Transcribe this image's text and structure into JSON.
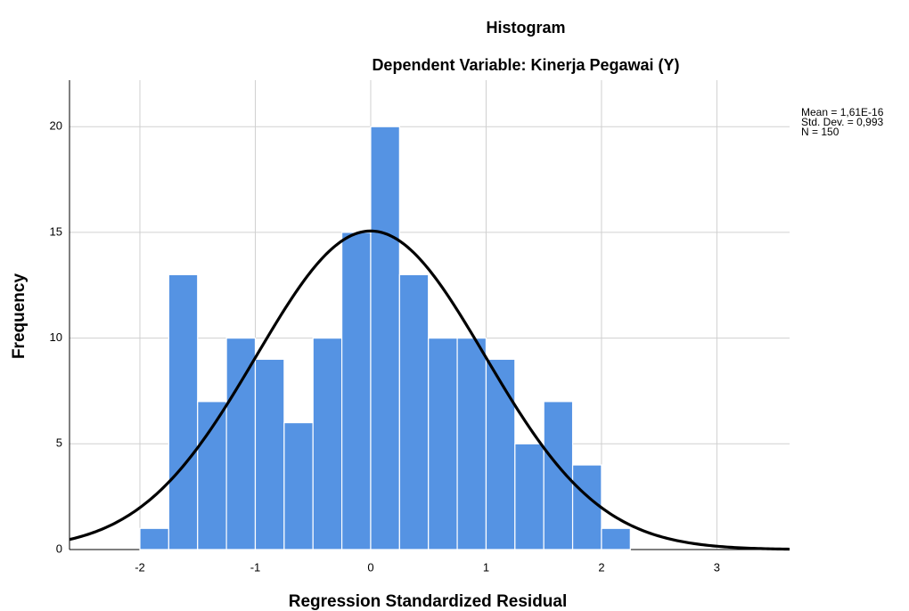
{
  "chart_data": {
    "type": "histogram",
    "title": "Histogram",
    "subtitle": "Dependent Variable: Kinerja Pegawai (Y)",
    "x_label": "Regression Standardized Residual",
    "y_label": "Frequency",
    "bins": [
      -2,
      -1.75,
      -1.5,
      -1.25,
      -1,
      -0.75,
      -0.5,
      -0.25,
      0,
      0.25,
      0.5,
      0.75,
      1,
      1.25,
      1.5,
      1.75,
      2,
      2.25
    ],
    "values": [
      1,
      13,
      7,
      10,
      9,
      6,
      10,
      15,
      20,
      13,
      10,
      10,
      9,
      5,
      7,
      4,
      1
    ],
    "color": "#5593e3",
    "xlim": [
      -2.61,
      3.63
    ],
    "ylim": [
      0,
      22.2
    ],
    "xticks": [
      -2,
      -1,
      0,
      1,
      2,
      3
    ],
    "yticks": [
      0,
      5,
      10,
      15,
      20
    ],
    "grid": true,
    "normal_curve": {
      "mean": 1.61e-16,
      "sd": 0.993,
      "n": 150,
      "color": "#000000"
    },
    "stats_labels": [
      "Mean = 1,61E-16",
      "Std. Dev. = 0,993",
      "N = 150"
    ]
  }
}
